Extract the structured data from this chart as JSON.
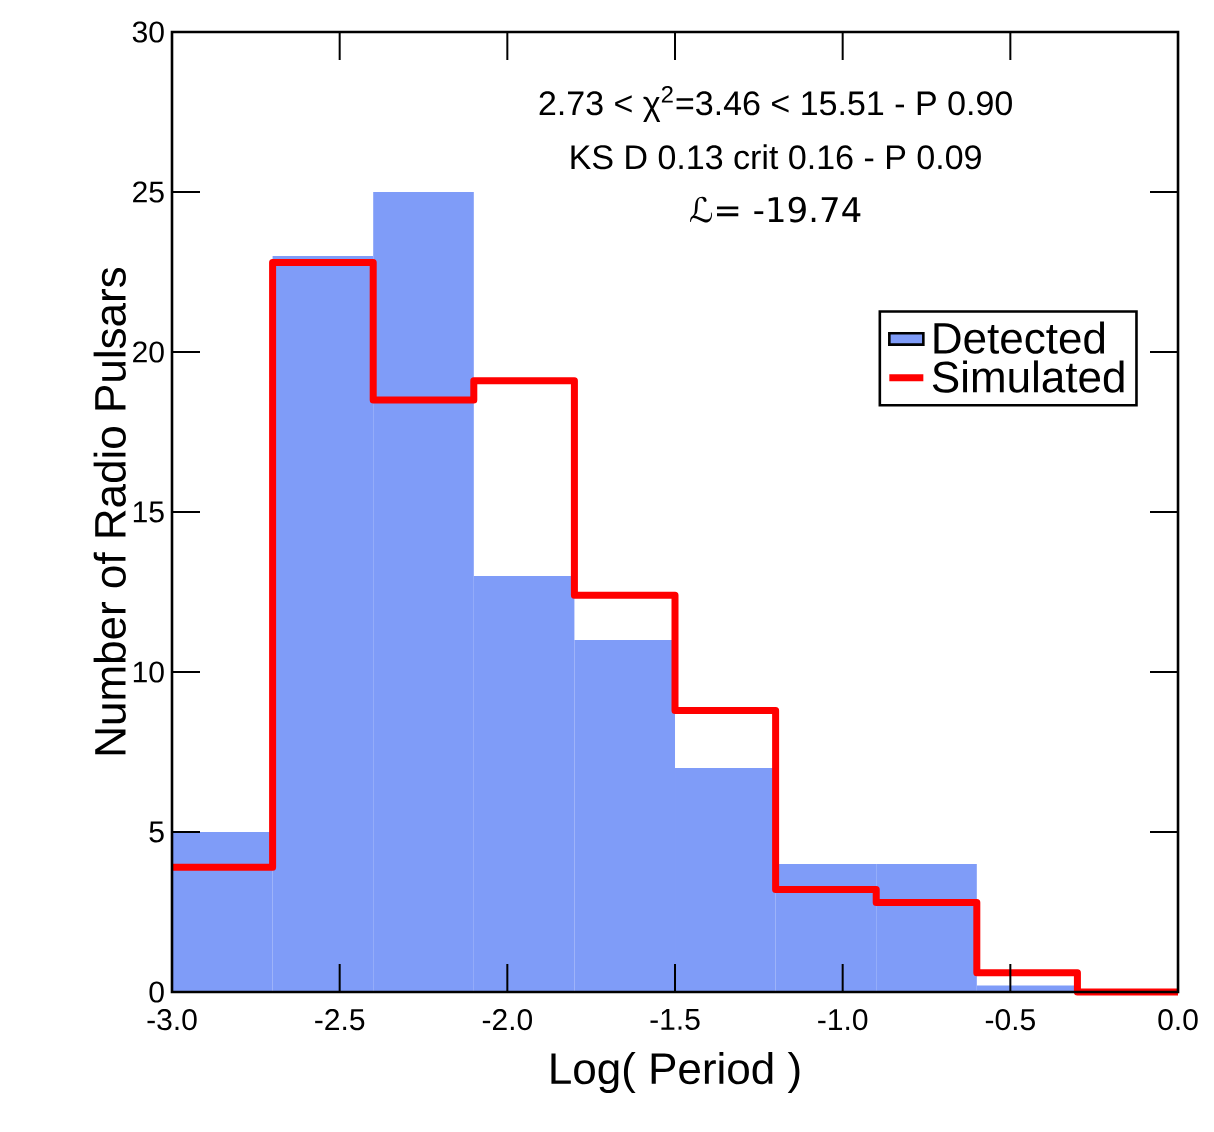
{
  "chart_data": {
    "type": "bar",
    "xlabel": "Log( Period )",
    "ylabel": "Number of Radio Pulsars",
    "series": [
      {
        "name": "Detected",
        "color": "#7f9cf8",
        "x": [
          -2.85,
          -2.55,
          -2.25,
          -1.95,
          -1.65,
          -1.35,
          -1.05,
          -0.75,
          -0.45,
          -0.15
        ],
        "values": [
          5,
          23,
          25,
          13,
          11,
          7,
          4,
          4,
          0.2,
          0
        ]
      },
      {
        "name": "Simulated",
        "type": "step",
        "color": "#ff0000",
        "x": [
          -3.0,
          -2.7,
          -2.4,
          -2.1,
          -1.8,
          -1.5,
          -1.2,
          -0.9,
          -0.6,
          -0.3,
          0.0
        ],
        "values": [
          3.9,
          22.8,
          18.5,
          19.1,
          12.4,
          8.8,
          3.2,
          2.8,
          0.6,
          0,
          0
        ]
      }
    ],
    "xlim": [
      -3.0,
      0.0
    ],
    "ylim": [
      0,
      30
    ],
    "xticks": [
      {
        "value": -3.0,
        "label": "-3.0"
      },
      {
        "value": -2.5,
        "label": "-2.5"
      },
      {
        "value": -2.0,
        "label": "-2.0"
      },
      {
        "value": -1.5,
        "label": "-1.5"
      },
      {
        "value": -1.0,
        "label": "-1.0"
      },
      {
        "value": -0.5,
        "label": "-0.5"
      },
      {
        "value": 0.0,
        "label": "0.0"
      }
    ],
    "yticks": [
      0,
      5,
      10,
      15,
      20,
      25,
      30
    ],
    "annotations": [
      "2.73 < χ$^{2}$=3.46 < 15.51 - P 0.90",
      "KS  D 0.13 crit 0.16 - P 0.09",
      "ℒ= -19.74"
    ],
    "legend": "right",
    "grid": false
  }
}
